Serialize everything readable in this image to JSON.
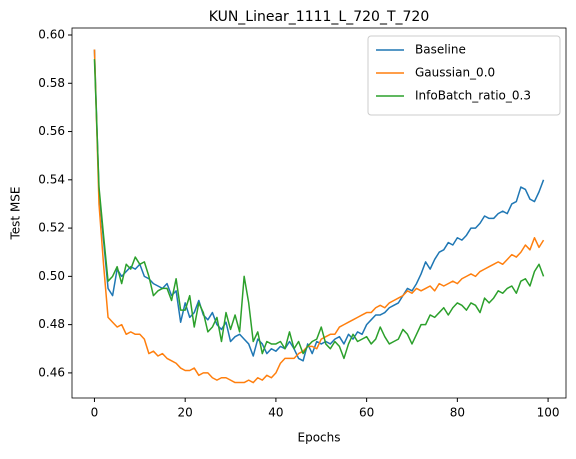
{
  "chart_data": {
    "type": "line",
    "title": "KUN_Linear_1111_L_720_T_720",
    "xlabel": "Epochs",
    "ylabel": "Test MSE",
    "x": [
      0,
      1,
      2,
      3,
      4,
      5,
      6,
      7,
      8,
      9,
      10,
      11,
      12,
      13,
      14,
      15,
      16,
      17,
      18,
      19,
      20,
      21,
      22,
      23,
      24,
      25,
      26,
      27,
      28,
      29,
      30,
      31,
      32,
      33,
      34,
      35,
      36,
      37,
      38,
      39,
      40,
      41,
      42,
      43,
      44,
      45,
      46,
      47,
      48,
      49,
      50,
      51,
      52,
      53,
      54,
      55,
      56,
      57,
      58,
      59,
      60,
      61,
      62,
      63,
      64,
      65,
      66,
      67,
      68,
      69,
      70,
      71,
      72,
      73,
      74,
      75,
      76,
      77,
      78,
      79,
      80,
      81,
      82,
      83,
      84,
      85,
      86,
      87,
      88,
      89,
      90,
      91,
      92,
      93,
      94,
      95,
      96,
      97,
      98,
      99
    ],
    "series": [
      {
        "name": "Baseline",
        "color": "#1f77b4",
        "values": [
          0.594,
          0.535,
          0.515,
          0.495,
          0.492,
          0.503,
          0.5,
          0.502,
          0.504,
          0.503,
          0.505,
          0.5,
          0.499,
          0.497,
          0.496,
          0.495,
          0.497,
          0.492,
          0.494,
          0.481,
          0.489,
          0.483,
          0.485,
          0.49,
          0.484,
          0.482,
          0.485,
          0.48,
          0.478,
          0.481,
          0.473,
          0.475,
          0.476,
          0.474,
          0.472,
          0.467,
          0.474,
          0.472,
          0.468,
          0.47,
          0.469,
          0.471,
          0.47,
          0.473,
          0.47,
          0.466,
          0.465,
          0.472,
          0.468,
          0.473,
          0.472,
          0.473,
          0.472,
          0.474,
          0.475,
          0.472,
          0.476,
          0.474,
          0.477,
          0.476,
          0.48,
          0.482,
          0.484,
          0.484,
          0.485,
          0.487,
          0.488,
          0.489,
          0.492,
          0.495,
          0.494,
          0.497,
          0.501,
          0.506,
          0.503,
          0.507,
          0.51,
          0.511,
          0.514,
          0.513,
          0.516,
          0.515,
          0.517,
          0.52,
          0.52,
          0.522,
          0.525,
          0.524,
          0.524,
          0.526,
          0.527,
          0.526,
          0.53,
          0.531,
          0.537,
          0.536,
          0.532,
          0.531,
          0.535,
          0.54
        ]
      },
      {
        "name": "Gaussian_0.0",
        "color": "#ff7f0e",
        "values": [
          0.594,
          0.53,
          0.505,
          0.483,
          0.481,
          0.479,
          0.48,
          0.476,
          0.477,
          0.476,
          0.476,
          0.474,
          0.468,
          0.469,
          0.467,
          0.468,
          0.466,
          0.465,
          0.464,
          0.462,
          0.461,
          0.461,
          0.462,
          0.459,
          0.46,
          0.46,
          0.458,
          0.457,
          0.458,
          0.458,
          0.457,
          0.456,
          0.456,
          0.456,
          0.457,
          0.456,
          0.458,
          0.457,
          0.459,
          0.458,
          0.46,
          0.464,
          0.466,
          0.466,
          0.466,
          0.468,
          0.469,
          0.471,
          0.471,
          0.47,
          0.474,
          0.475,
          0.476,
          0.476,
          0.479,
          0.48,
          0.481,
          0.482,
          0.483,
          0.484,
          0.485,
          0.485,
          0.487,
          0.488,
          0.487,
          0.489,
          0.49,
          0.491,
          0.492,
          0.494,
          0.493,
          0.495,
          0.494,
          0.495,
          0.496,
          0.494,
          0.497,
          0.496,
          0.497,
          0.498,
          0.497,
          0.499,
          0.5,
          0.501,
          0.5,
          0.502,
          0.503,
          0.504,
          0.505,
          0.506,
          0.505,
          0.507,
          0.509,
          0.508,
          0.51,
          0.513,
          0.511,
          0.516,
          0.512,
          0.515
        ]
      },
      {
        "name": "InfoBatch_ratio_0.3",
        "color": "#2ca02c",
        "values": [
          0.59,
          0.537,
          0.517,
          0.498,
          0.5,
          0.504,
          0.497,
          0.505,
          0.503,
          0.508,
          0.505,
          0.506,
          0.5,
          0.492,
          0.494,
          0.495,
          0.495,
          0.49,
          0.499,
          0.486,
          0.486,
          0.492,
          0.479,
          0.489,
          0.485,
          0.477,
          0.479,
          0.483,
          0.473,
          0.485,
          0.478,
          0.484,
          0.477,
          0.5,
          0.489,
          0.473,
          0.477,
          0.468,
          0.473,
          0.472,
          0.472,
          0.473,
          0.47,
          0.477,
          0.47,
          0.473,
          0.468,
          0.471,
          0.473,
          0.474,
          0.479,
          0.472,
          0.47,
          0.473,
          0.471,
          0.466,
          0.472,
          0.476,
          0.473,
          0.474,
          0.475,
          0.472,
          0.474,
          0.479,
          0.475,
          0.472,
          0.473,
          0.474,
          0.478,
          0.476,
          0.472,
          0.476,
          0.48,
          0.48,
          0.484,
          0.483,
          0.485,
          0.487,
          0.484,
          0.487,
          0.489,
          0.488,
          0.486,
          0.489,
          0.488,
          0.485,
          0.491,
          0.489,
          0.491,
          0.494,
          0.493,
          0.495,
          0.496,
          0.493,
          0.498,
          0.499,
          0.496,
          0.502,
          0.505,
          0.5
        ]
      }
    ],
    "xlim": [
      -4.95,
      103.95
    ],
    "ylim": [
      0.4496,
      0.6029
    ],
    "xticks": [
      0,
      20,
      40,
      60,
      80,
      100
    ],
    "yticks": [
      0.46,
      0.48,
      {
        "value": 0.5,
        "label": "0.50"
      },
      0.52,
      0.54,
      0.56,
      0.58,
      {
        "value": 0.6,
        "label": "0.60"
      }
    ],
    "legend": "upper right"
  }
}
